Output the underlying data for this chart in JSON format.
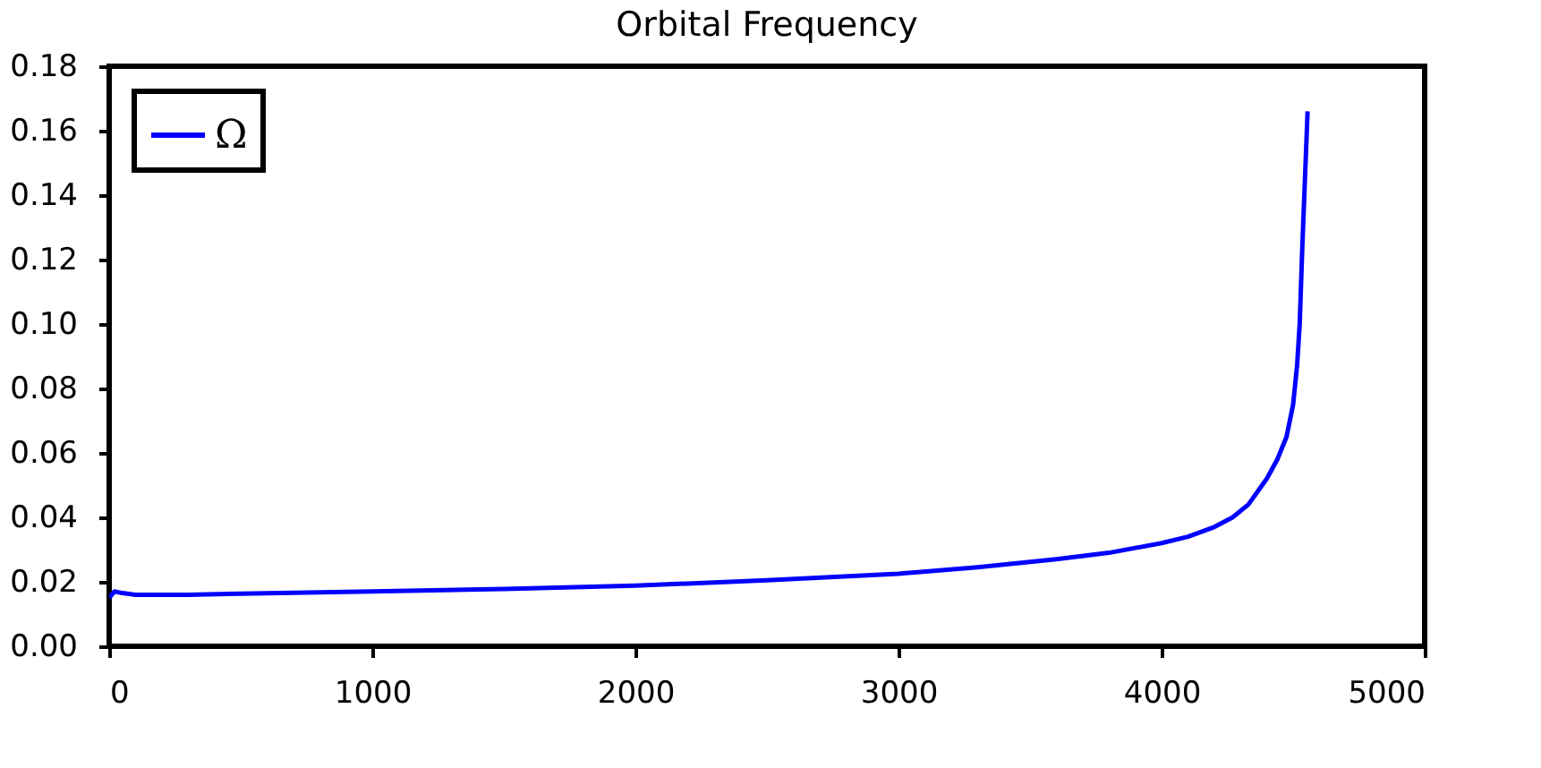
{
  "chart_data": {
    "type": "line",
    "title": "Orbital Frequency",
    "series": [
      {
        "name": "Ω",
        "color": "#0000ff",
        "x": [
          0,
          20,
          50,
          100,
          300,
          500,
          1000,
          1500,
          2000,
          2500,
          3000,
          3300,
          3600,
          3800,
          4000,
          4100,
          4200,
          4270,
          4330,
          4400,
          4440,
          4475,
          4500,
          4515,
          4525,
          4535,
          4545,
          4555
        ],
        "values": [
          0.015,
          0.017,
          0.0165,
          0.016,
          0.016,
          0.0163,
          0.017,
          0.0178,
          0.0188,
          0.0205,
          0.0225,
          0.0245,
          0.027,
          0.029,
          0.032,
          0.034,
          0.037,
          0.04,
          0.044,
          0.052,
          0.058,
          0.065,
          0.075,
          0.087,
          0.1,
          0.124,
          0.145,
          0.166
        ]
      }
    ],
    "xlim": [
      0,
      5000
    ],
    "xticks": [
      0,
      1000,
      2000,
      3000,
      4000,
      5000
    ],
    "ylim": [
      0,
      0.18
    ],
    "yticks": [
      {
        "value": 0,
        "label": "0.00"
      },
      {
        "value": 0.02,
        "label": "0.02"
      },
      {
        "value": 0.04,
        "label": "0.04"
      },
      {
        "value": 0.06,
        "label": "0.06"
      },
      {
        "value": 0.08,
        "label": "0.08"
      },
      {
        "value": 0.1,
        "label": "0.10"
      },
      {
        "value": 0.12,
        "label": "0.12"
      },
      {
        "value": 0.14,
        "label": "0.14"
      },
      {
        "value": 0.16,
        "label": "0.16"
      },
      {
        "value": 0.18,
        "label": "0.18"
      }
    ],
    "legend": "top left",
    "grid": false,
    "marker": "none",
    "line_style": "solid"
  }
}
